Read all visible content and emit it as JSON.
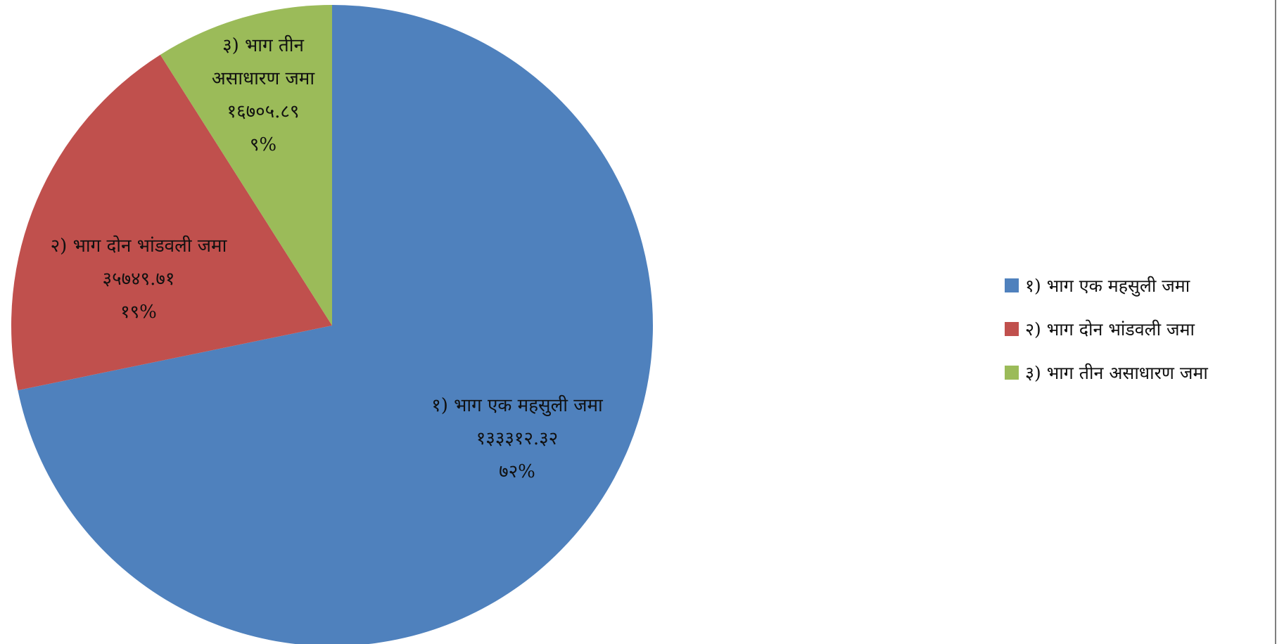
{
  "chart_data": {
    "type": "pie",
    "title": "",
    "start_angle_deg": 0,
    "direction": "clockwise",
    "legend_position": "right",
    "slices": [
      {
        "name": "१) भाग एक महसुली जमा",
        "value": 133312.32,
        "value_label": "१३३३१२.३२",
        "percent": 72,
        "percent_label": "७२%",
        "color": "#4F81BD",
        "label_lines": [
          "१) भाग एक महसुली जमा"
        ]
      },
      {
        "name": "२) भाग दोन भांडवली जमा",
        "value": 35749.71,
        "value_label": "३५७४९.७१",
        "percent": 19,
        "percent_label": "१९%",
        "color": "#C0504D",
        "label_lines": [
          "२) भाग दोन भांडवली जमा"
        ]
      },
      {
        "name": "३) भाग तीन असाधारण जमा",
        "value": 16705.89,
        "value_label": "१६७०५.८९",
        "percent": 9,
        "percent_label": "९%",
        "color": "#9BBB59",
        "label_lines": [
          "३) भाग तीन",
          "असाधारण जमा"
        ]
      }
    ]
  }
}
